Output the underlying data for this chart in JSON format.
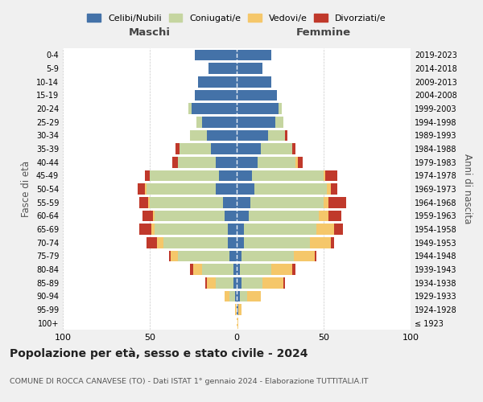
{
  "age_groups": [
    "100+",
    "95-99",
    "90-94",
    "85-89",
    "80-84",
    "75-79",
    "70-74",
    "65-69",
    "60-64",
    "55-59",
    "50-54",
    "45-49",
    "40-44",
    "35-39",
    "30-34",
    "25-29",
    "20-24",
    "15-19",
    "10-14",
    "5-9",
    "0-4"
  ],
  "birth_years": [
    "≤ 1923",
    "1924-1928",
    "1929-1933",
    "1934-1938",
    "1939-1943",
    "1944-1948",
    "1949-1953",
    "1954-1958",
    "1959-1963",
    "1964-1968",
    "1969-1973",
    "1974-1978",
    "1979-1983",
    "1984-1988",
    "1989-1993",
    "1994-1998",
    "1999-2003",
    "2004-2008",
    "2009-2013",
    "2014-2018",
    "2019-2023"
  ],
  "colors": {
    "celibi": "#4472a8",
    "coniugati": "#c5d5a0",
    "vedovi": "#f5c76a",
    "divorziati": "#c0392b"
  },
  "maschi": {
    "celibi": [
      0,
      0,
      1,
      2,
      2,
      4,
      5,
      5,
      7,
      8,
      12,
      10,
      12,
      15,
      17,
      20,
      26,
      24,
      22,
      16,
      24
    ],
    "coniugati": [
      0,
      0,
      3,
      10,
      18,
      30,
      37,
      42,
      40,
      42,
      40,
      40,
      22,
      18,
      10,
      3,
      2,
      0,
      0,
      0,
      0
    ],
    "vedovi": [
      0,
      1,
      3,
      5,
      5,
      4,
      4,
      2,
      1,
      1,
      1,
      0,
      0,
      0,
      0,
      0,
      0,
      0,
      0,
      0,
      0
    ],
    "divorziati": [
      0,
      0,
      0,
      1,
      2,
      1,
      6,
      7,
      6,
      5,
      4,
      3,
      3,
      2,
      0,
      0,
      0,
      0,
      0,
      0,
      0
    ]
  },
  "femmine": {
    "celibi": [
      0,
      1,
      2,
      3,
      2,
      3,
      4,
      4,
      7,
      8,
      10,
      9,
      12,
      14,
      18,
      22,
      24,
      23,
      20,
      15,
      20
    ],
    "coniugati": [
      0,
      0,
      4,
      12,
      18,
      30,
      38,
      42,
      40,
      42,
      42,
      41,
      22,
      18,
      10,
      5,
      2,
      0,
      0,
      0,
      0
    ],
    "vedovi": [
      1,
      2,
      8,
      12,
      12,
      12,
      12,
      10,
      6,
      3,
      2,
      1,
      1,
      0,
      0,
      0,
      0,
      0,
      0,
      0,
      0
    ],
    "divorziati": [
      0,
      0,
      0,
      1,
      2,
      1,
      2,
      5,
      7,
      10,
      4,
      7,
      3,
      2,
      1,
      0,
      0,
      0,
      0,
      0,
      0
    ]
  },
  "title": "Popolazione per età, sesso e stato civile - 2024",
  "subtitle": "COMUNE DI ROCCA CANAVESE (TO) - Dati ISTAT 1° gennaio 2024 - Elaborazione TUTTITALIA.IT",
  "xlabel_left": "Maschi",
  "xlabel_right": "Femmine",
  "ylabel_left": "Fasce di età",
  "ylabel_right": "Anni di nascita",
  "xlim": 100,
  "background": "#f0f0f0",
  "plot_bg": "#ffffff",
  "legend_labels": [
    "Celibi/Nubili",
    "Coniugati/e",
    "Vedovi/e",
    "Divorziati/e"
  ]
}
